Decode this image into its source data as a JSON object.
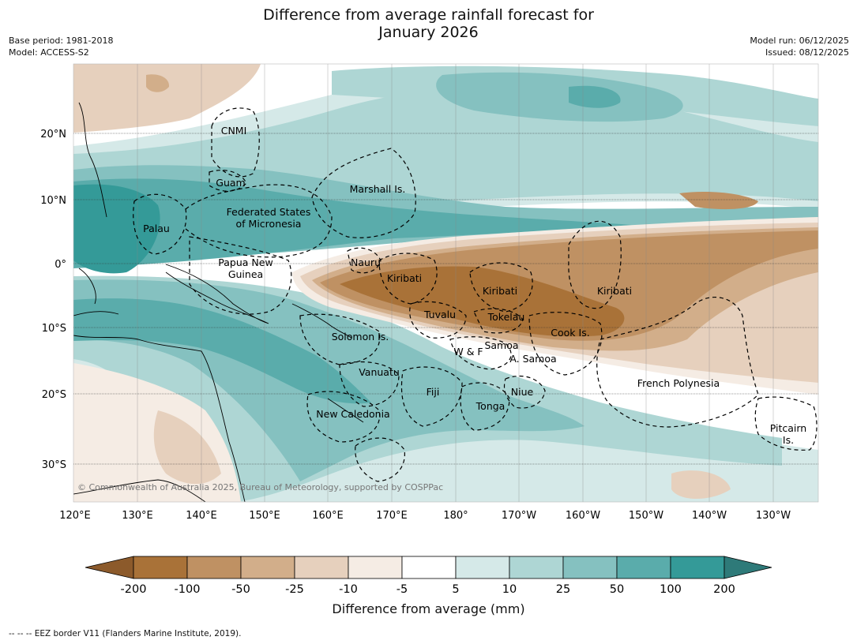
{
  "header": {
    "title_line1": "Difference from average rainfall forecast for",
    "title_line2": "January 2026",
    "base_period": "Base period: 1981-2018",
    "model": "Model: ACCESS-S2",
    "model_run": "Model run: 06/12/2025",
    "issued": "Issued: 08/12/2025"
  },
  "axes": {
    "lat_labels": [
      "20°N",
      "10°N",
      "0°",
      "10°S",
      "20°S",
      "30°S"
    ],
    "lon_labels": [
      "120°E",
      "130°E",
      "140°E",
      "150°E",
      "160°E",
      "170°E",
      "180°",
      "170°W",
      "160°W",
      "150°W",
      "140°W",
      "130°W"
    ]
  },
  "regions": [
    "CNMI",
    "Guam",
    "Marshall Is.",
    "Federated States",
    "of Micronesia",
    "Palau",
    "Papua New",
    "Guinea",
    "Nauru",
    "Kiribati",
    "Kiribati",
    "Kiribati",
    "Tuvalu",
    "Tokelau",
    "Cook Is.",
    "Solomon Is.",
    "W & F",
    "Samoa",
    "A. Samoa",
    "Vanuatu",
    "Fiji",
    "Niue",
    "Tonga",
    "French Polynesia",
    "New Caledonia",
    "Pitcairn",
    "Is."
  ],
  "copyright": "© Commonwealth of Australia 2025, Bureau of Meteorology, supported by COSPPac",
  "colorbar": {
    "ticks": [
      "-200",
      "-100",
      "-50",
      "-25",
      "-10",
      "-5",
      "5",
      "10",
      "25",
      "50",
      "100",
      "200"
    ],
    "colors": [
      "#8c5a2b",
      "#a97238",
      "#bf9163",
      "#d2ae8a",
      "#e6d0bd",
      "#f5ece4",
      "#ffffff",
      "#d5e9e8",
      "#aed6d4",
      "#85c1c0",
      "#5aacab",
      "#349a98",
      "#2e7a79"
    ],
    "label": "Difference from average (mm)"
  },
  "footer": "--  --  -- EEZ border V11 (Flanders Marine Institute, 2019)."
}
